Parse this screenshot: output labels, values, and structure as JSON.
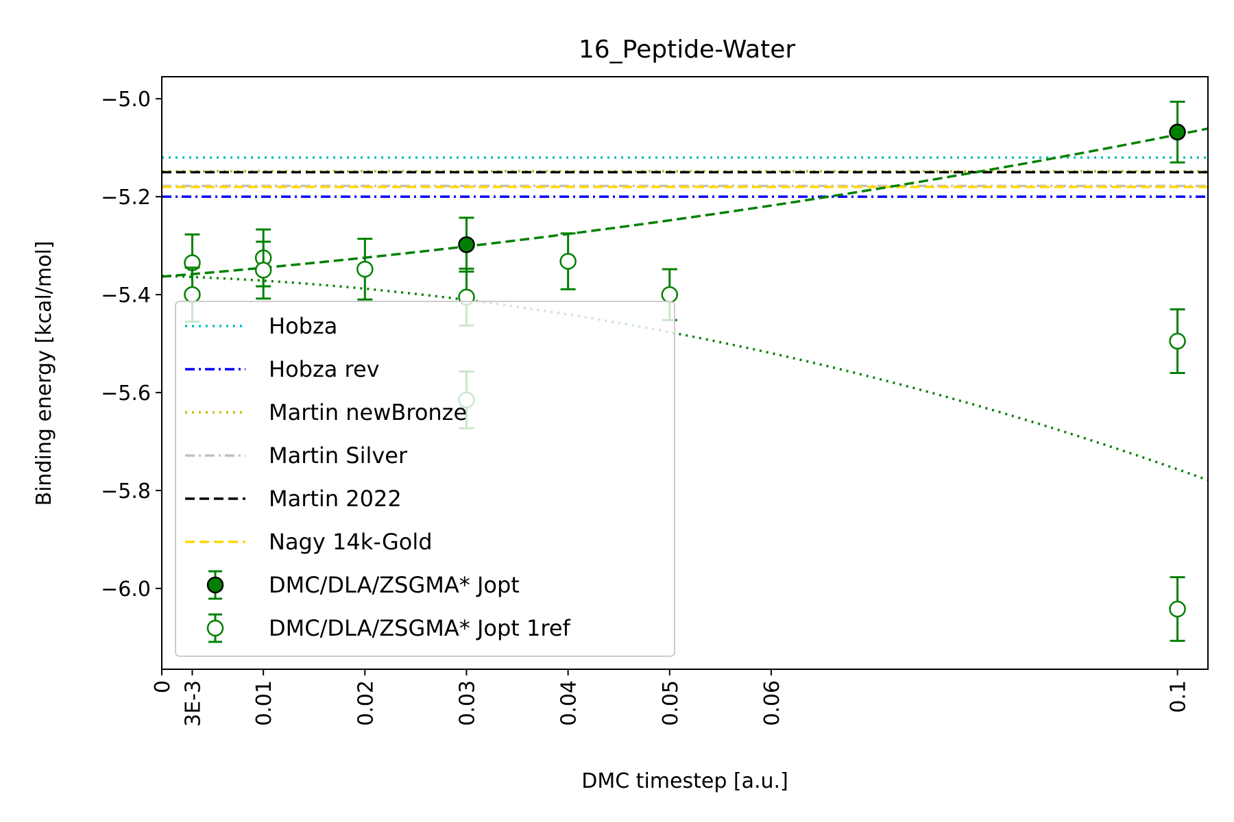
{
  "chart_data": {
    "type": "scatter",
    "title": "16_Peptide-Water",
    "xlabel": "DMC timestep [a.u.]",
    "ylabel": "Binding energy [kcal/mol]",
    "xlim": [
      0,
      0.103
    ],
    "ylim": [
      -6.165,
      -4.955
    ],
    "x_ticks": [
      {
        "value": 0,
        "label": "0"
      },
      {
        "value": 0.003,
        "label": "3E-3"
      },
      {
        "value": 0.01,
        "label": "0.01"
      },
      {
        "value": 0.02,
        "label": "0.02"
      },
      {
        "value": 0.03,
        "label": "0.03"
      },
      {
        "value": 0.04,
        "label": "0.04"
      },
      {
        "value": 0.05,
        "label": "0.05"
      },
      {
        "value": 0.06,
        "label": "0.06"
      },
      {
        "value": 0.1,
        "label": "0.1"
      }
    ],
    "y_ticks": [
      {
        "value": -5.0,
        "label": "−5.0"
      },
      {
        "value": -5.2,
        "label": "−5.2"
      },
      {
        "value": -5.4,
        "label": "−5.4"
      },
      {
        "value": -5.6,
        "label": "−5.6"
      },
      {
        "value": -5.8,
        "label": "−5.8"
      },
      {
        "value": -6.0,
        "label": "−6.0"
      }
    ],
    "reference_lines": [
      {
        "name": "Hobza",
        "y": -5.12,
        "color": "#00bfbf",
        "style": "dotted"
      },
      {
        "name": "Hobza rev",
        "y": -5.2,
        "color": "#0000ff",
        "style": "dashdot"
      },
      {
        "name": "Martin newBronze",
        "y": -5.148,
        "color": "#bfbf00",
        "style": "dotted"
      },
      {
        "name": "Martin Silver",
        "y": -5.178,
        "color": "#c0c0c0",
        "style": "dashdot"
      },
      {
        "name": "Martin 2022",
        "y": -5.15,
        "color": "#000000",
        "style": "dashed"
      },
      {
        "name": "Nagy 14k-Gold",
        "y": -5.18,
        "color": "#ffd700",
        "style": "dashed"
      }
    ],
    "series": [
      {
        "name": "DMC/DLA/ZSGMA* Jopt",
        "marker": "filled-circle",
        "color": "#008000",
        "points": [
          {
            "x": 0.03,
            "y": -5.298,
            "err": 0.055
          },
          {
            "x": 0.1,
            "y": -5.068,
            "err": 0.062
          }
        ],
        "fit": {
          "style": "dashed",
          "a": -5.3633,
          "b": 1.7,
          "c": 12.0
        }
      },
      {
        "name": "DMC/DLA/ZSGMA* Jopt 1ref",
        "marker": "open-circle",
        "color": "#008000",
        "points": [
          {
            "x": 0.003,
            "y": -5.335,
            "err": 0.058
          },
          {
            "x": 0.003,
            "y": -5.4,
            "err": 0.055
          },
          {
            "x": 0.01,
            "y": -5.325,
            "err": 0.058
          },
          {
            "x": 0.01,
            "y": -5.35,
            "err": 0.058
          },
          {
            "x": 0.02,
            "y": -5.348,
            "err": 0.062
          },
          {
            "x": 0.03,
            "y": -5.405,
            "err": 0.058
          },
          {
            "x": 0.03,
            "y": -5.615,
            "err": 0.058
          },
          {
            "x": 0.04,
            "y": -5.332,
            "err": 0.057
          },
          {
            "x": 0.05,
            "y": -5.4,
            "err": 0.052
          },
          {
            "x": 0.1,
            "y": -5.495,
            "err": 0.065
          },
          {
            "x": 0.1,
            "y": -6.042,
            "err": 0.065
          }
        ],
        "fit": {
          "style": "dotted",
          "a": -5.3617,
          "b": -0.65,
          "c": -33.0
        }
      }
    ],
    "legend": {
      "placement": "lower-left",
      "entries": [
        "Hobza",
        "Hobza rev",
        "Martin newBronze",
        "Martin Silver",
        "Martin 2022",
        "Nagy 14k-Gold",
        "DMC/DLA/ZSGMA* Jopt",
        "DMC/DLA/ZSGMA* Jopt 1ref"
      ]
    }
  }
}
